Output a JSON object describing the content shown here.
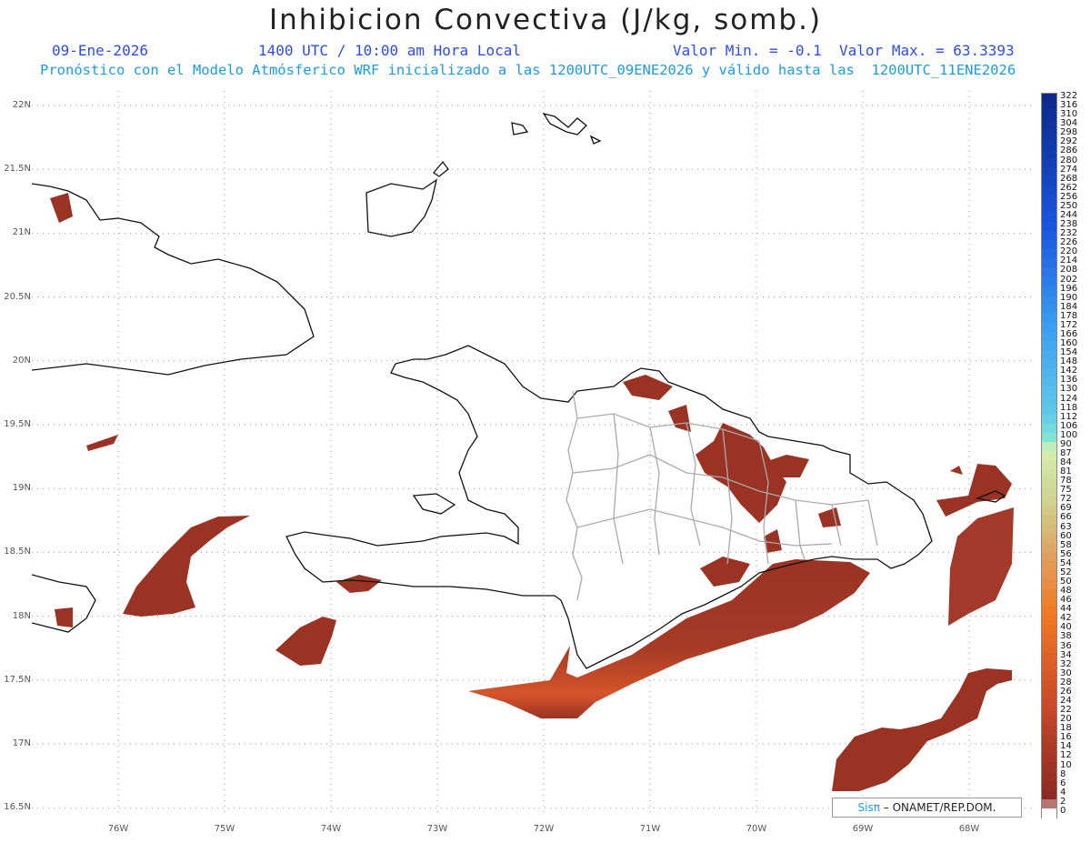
{
  "title": "Inhibicion Convectiva (J/kg, somb.)",
  "header": {
    "date": "09-Ene-2026",
    "time": "1400 UTC / 10:00 am Hora Local",
    "minmax": "Valor Min. = -0.1  Valor Max. = 63.3393",
    "subtitle": "Pronóstico con el Modelo Atmósferico WRF inicializado a las 1200UTC_09ENE2026 y válido hasta las  1200UTC_11ENE2026"
  },
  "axes": {
    "lat_labels": [
      "22N",
      "21.5N",
      "21N",
      "20.5N",
      "20N",
      "19.5N",
      "19N",
      "18.5N",
      "18N",
      "17.5N",
      "17N",
      "16.5N"
    ],
    "lon_labels": [
      "76W",
      "75W",
      "74W",
      "73W",
      "72W",
      "71W",
      "70W",
      "69W",
      "68W"
    ]
  },
  "colorbar": {
    "labels": [
      "322",
      "316",
      "310",
      "304",
      "298",
      "292",
      "286",
      "280",
      "274",
      "268",
      "262",
      "256",
      "250",
      "244",
      "238",
      "232",
      "226",
      "220",
      "214",
      "208",
      "202",
      "196",
      "190",
      "184",
      "178",
      "172",
      "166",
      "160",
      "154",
      "148",
      "142",
      "136",
      "130",
      "124",
      "118",
      "112",
      "106",
      "100",
      "90",
      "87",
      "84",
      "81",
      "78",
      "75",
      "72",
      "69",
      "66",
      "63",
      "60",
      "58",
      "56",
      "54",
      "52",
      "50",
      "48",
      "46",
      "44",
      "42",
      "40",
      "38",
      "36",
      "34",
      "32",
      "30",
      "28",
      "26",
      "24",
      "22",
      "20",
      "18",
      "16",
      "14",
      "12",
      "10",
      "8",
      "6",
      "4",
      "2",
      "0"
    ],
    "colors": {
      "shade_main": "#9a3324",
      "shade_warm": "#c9482a",
      "shade_hot": "#f07a22",
      "coast": "#111111",
      "province": "#aaaaaa"
    }
  },
  "credit": {
    "sis": "Sisπ",
    "rest": " – ONAMET/REP.DOM."
  }
}
